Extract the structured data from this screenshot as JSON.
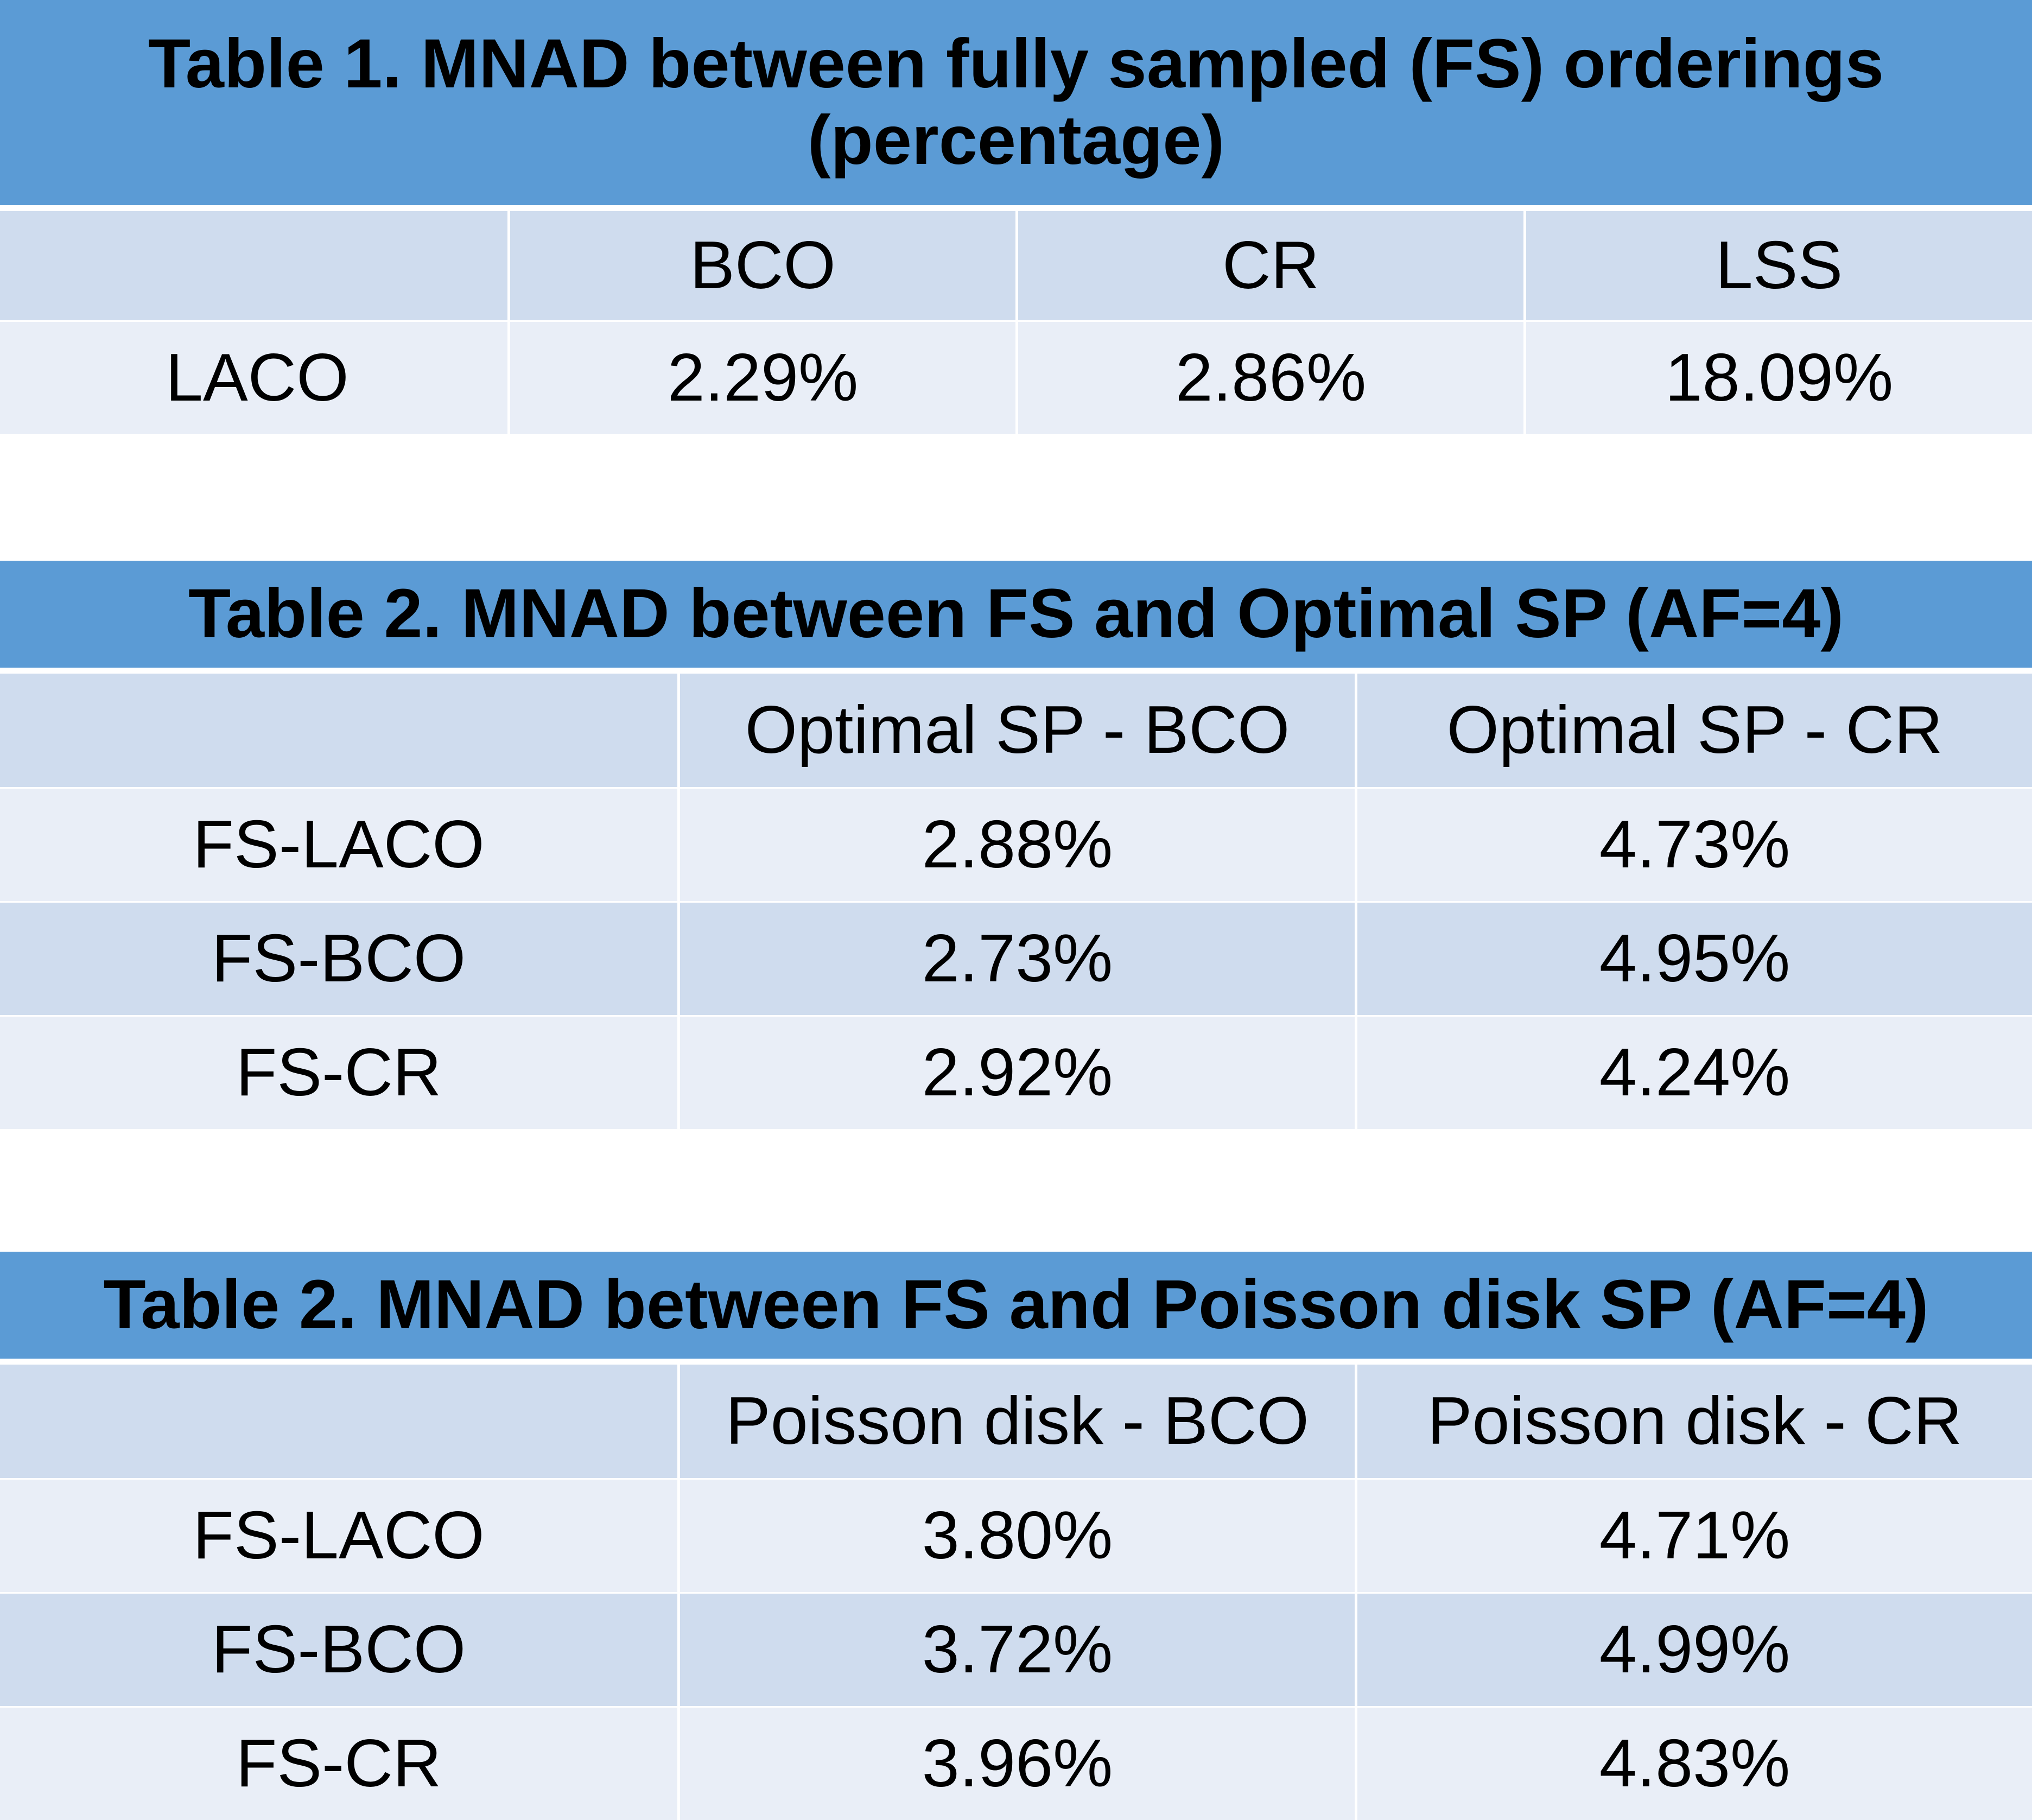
{
  "tables": [
    {
      "title": "Table 1. MNAD between fully sampled (FS) orderings (percentage)",
      "headers": [
        "",
        "BCO",
        "CR",
        "LSS"
      ],
      "rows": [
        {
          "label": "LACO",
          "values": [
            "2.29%",
            "2.86%",
            "18.09%"
          ]
        }
      ]
    },
    {
      "title": "Table 2. MNAD between FS and Optimal SP (AF=4)",
      "headers": [
        "",
        "Optimal SP - BCO",
        "Optimal SP - CR"
      ],
      "rows": [
        {
          "label": "FS-LACO",
          "values": [
            "2.88%",
            "4.73%"
          ]
        },
        {
          "label": "FS-BCO",
          "values": [
            "2.73%",
            "4.95%"
          ]
        },
        {
          "label": "FS-CR",
          "values": [
            "2.92%",
            "4.24%"
          ]
        }
      ]
    },
    {
      "title": "Table 2. MNAD between FS and Poisson disk SP (AF=4)",
      "headers": [
        "",
        "Poisson disk - BCO",
        "Poisson disk - CR"
      ],
      "rows": [
        {
          "label": "FS-LACO",
          "values": [
            "3.80%",
            "4.71%"
          ]
        },
        {
          "label": "FS-BCO",
          "values": [
            "3.72%",
            "4.99%"
          ]
        },
        {
          "label": "FS-CR",
          "values": [
            "3.96%",
            "4.83%"
          ]
        }
      ]
    }
  ],
  "colors": {
    "title_bg": "#5b9bd5",
    "row_dark": "#cfdcee",
    "row_light": "#e9eef7"
  }
}
